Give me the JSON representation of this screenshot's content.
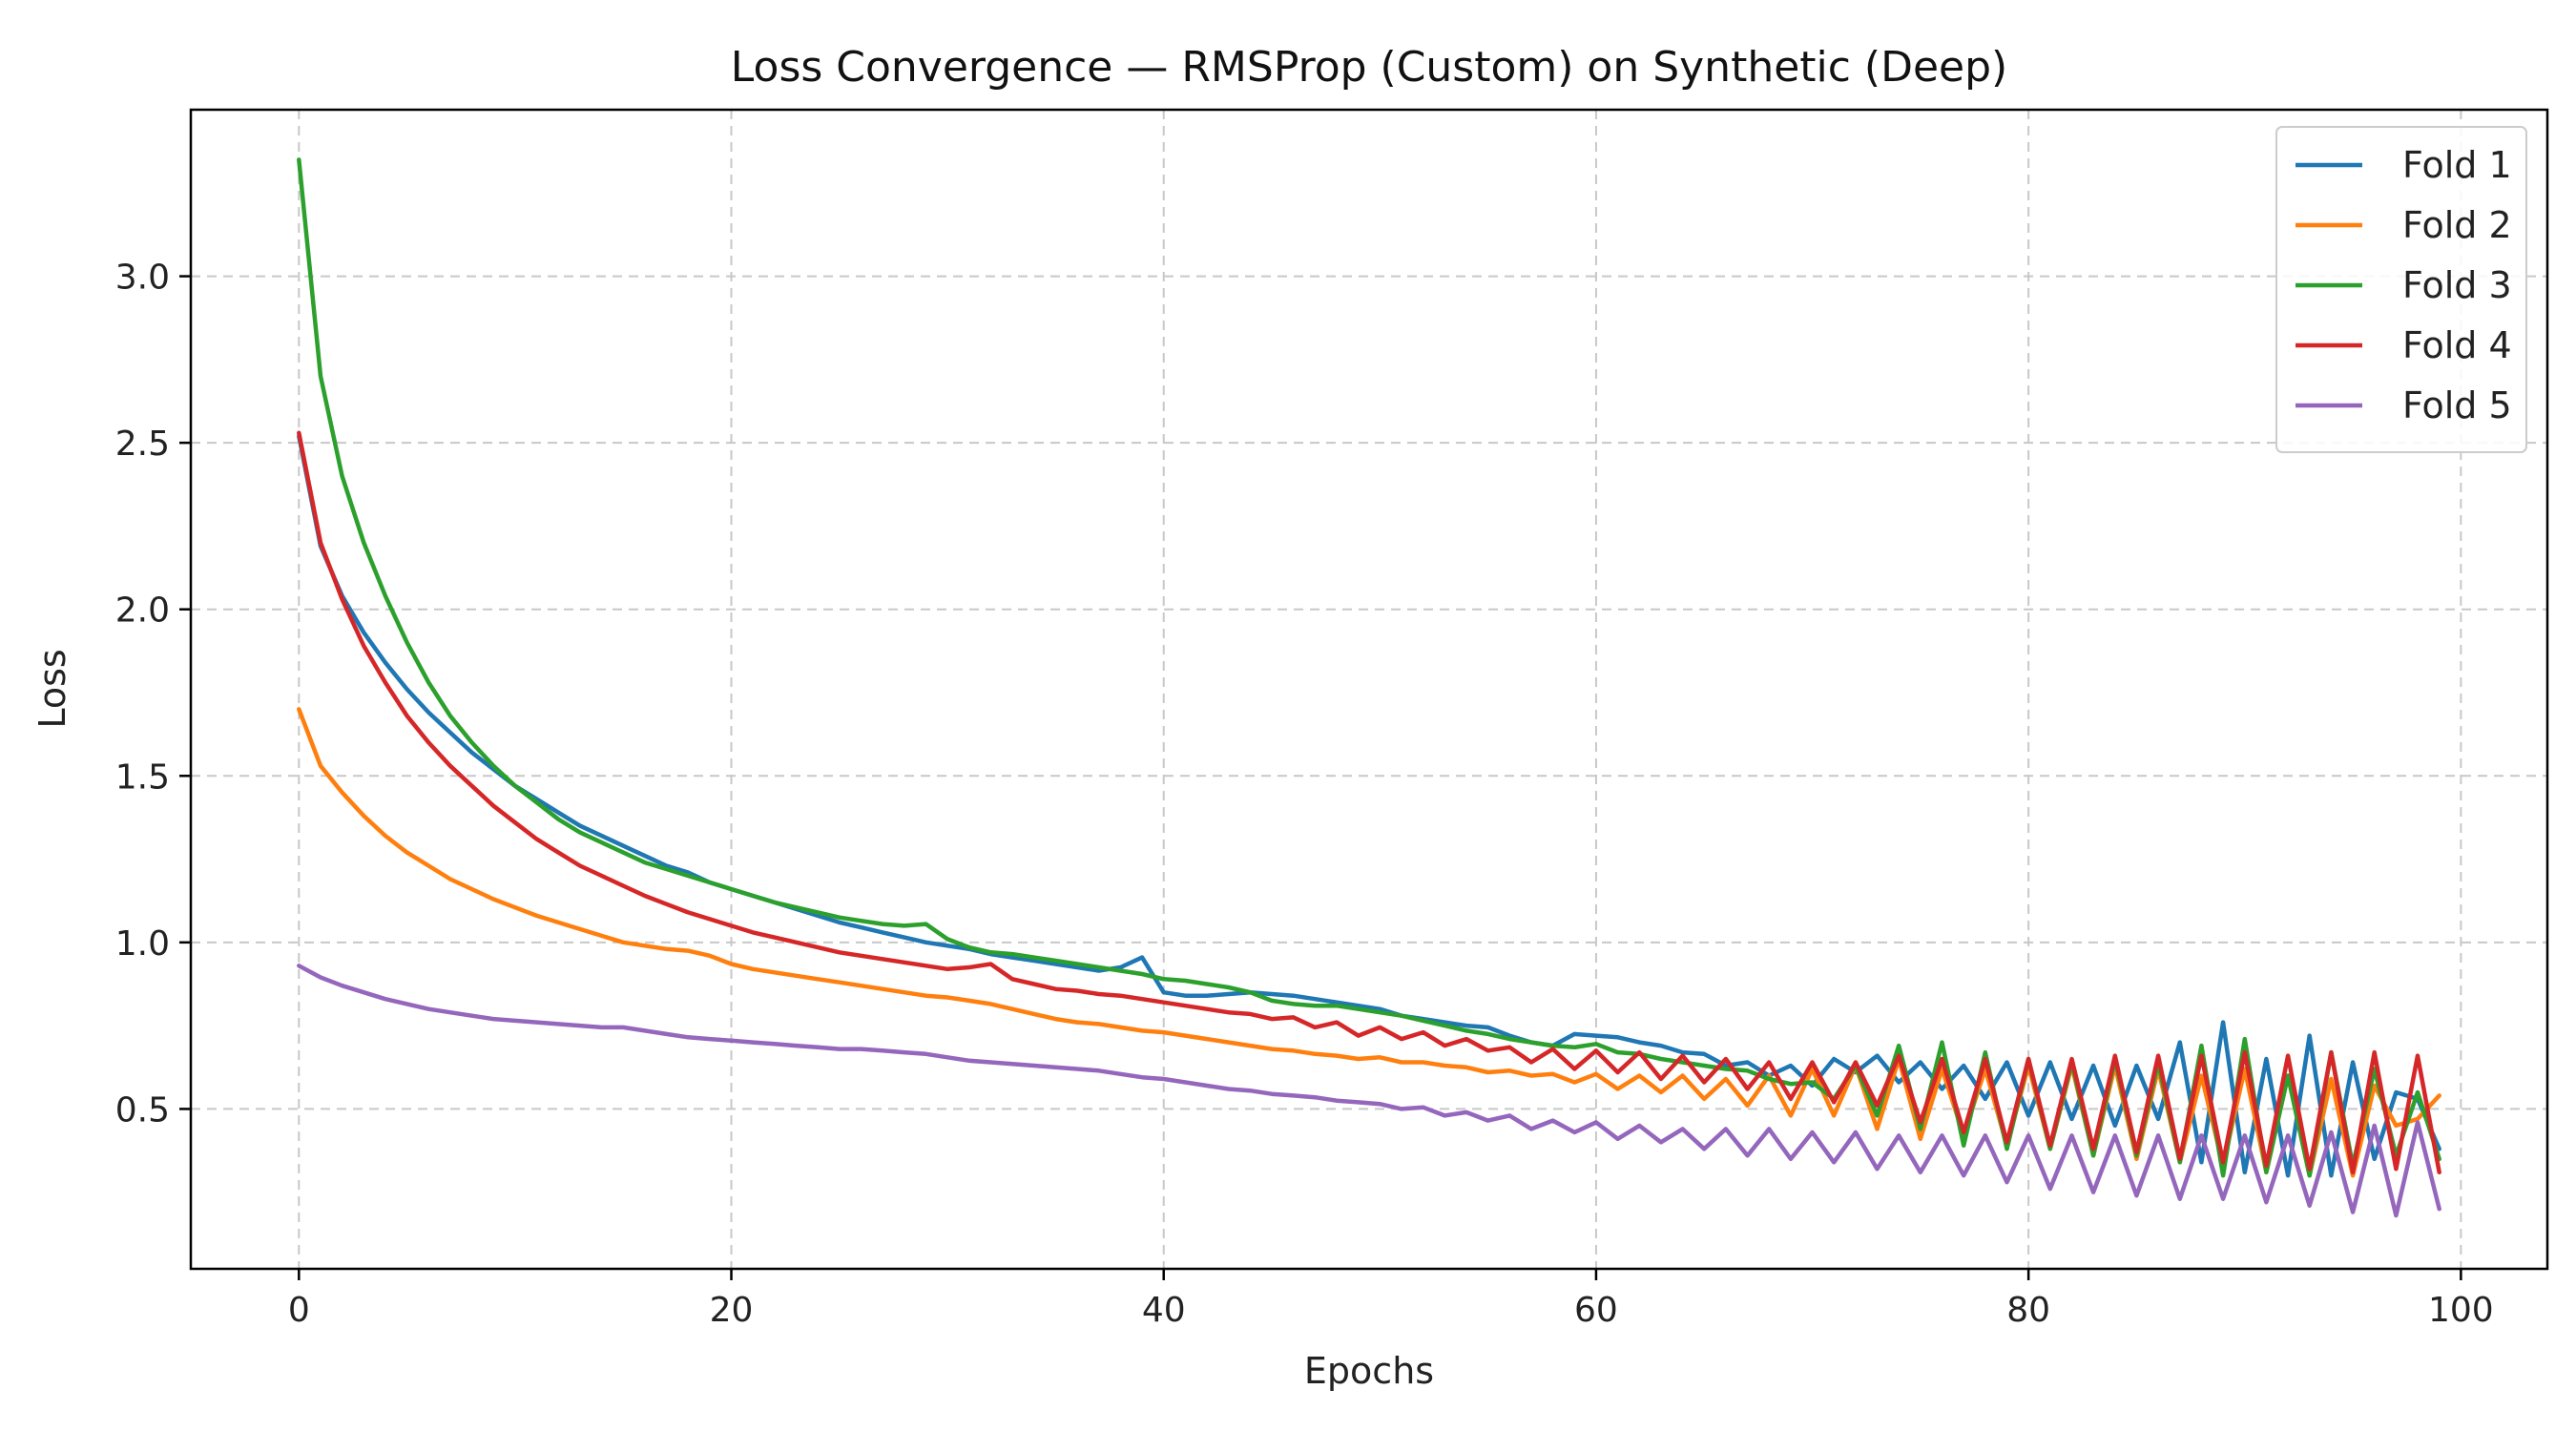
{
  "chart_data": {
    "type": "line",
    "title": "Loss Convergence — RMSProp (Custom) on Synthetic (Deep)",
    "xlabel": "Epochs",
    "ylabel": "Loss",
    "xlim": [
      -5,
      104
    ],
    "ylim": [
      0.02,
      3.5
    ],
    "xticks": [
      0,
      20,
      40,
      60,
      80,
      100
    ],
    "yticks": [
      0.5,
      1.0,
      1.5,
      2.0,
      2.5,
      3.0
    ],
    "xtick_labels": [
      "0",
      "20",
      "40",
      "60",
      "80",
      "100"
    ],
    "ytick_labels": [
      "0.5",
      "1.0",
      "1.5",
      "2.0",
      "2.5",
      "3.0"
    ],
    "grid": true,
    "legend_position": "top-right",
    "series": [
      {
        "name": "Fold 1",
        "color": "#1f77b4",
        "values": [
          2.52,
          2.19,
          2.04,
          1.93,
          1.84,
          1.76,
          1.69,
          1.63,
          1.57,
          1.52,
          1.47,
          1.43,
          1.39,
          1.35,
          1.32,
          1.29,
          1.26,
          1.23,
          1.21,
          1.18,
          1.16,
          1.14,
          1.12,
          1.1,
          1.08,
          1.06,
          1.045,
          1.03,
          1.015,
          1.0,
          0.99,
          0.98,
          0.965,
          0.955,
          0.945,
          0.935,
          0.925,
          0.915,
          0.925,
          0.955,
          0.85,
          0.84,
          0.84,
          0.845,
          0.85,
          0.845,
          0.84,
          0.83,
          0.82,
          0.81,
          0.8,
          0.78,
          0.77,
          0.76,
          0.75,
          0.745,
          0.72,
          0.7,
          0.69,
          0.725,
          0.72,
          0.715,
          0.7,
          0.69,
          0.67,
          0.665,
          0.63,
          0.64,
          0.6,
          0.63,
          0.57,
          0.65,
          0.61,
          0.66,
          0.58,
          0.64,
          0.56,
          0.63,
          0.53,
          0.64,
          0.48,
          0.64,
          0.47,
          0.63,
          0.45,
          0.63,
          0.47,
          0.7,
          0.34,
          0.76,
          0.31,
          0.65,
          0.3,
          0.72,
          0.3,
          0.64,
          0.35,
          0.55,
          0.53,
          0.38
        ]
      },
      {
        "name": "Fold 2",
        "color": "#ff7f0e",
        "values": [
          1.7,
          1.53,
          1.45,
          1.38,
          1.32,
          1.27,
          1.23,
          1.19,
          1.16,
          1.13,
          1.105,
          1.08,
          1.06,
          1.04,
          1.02,
          1.0,
          0.99,
          0.98,
          0.975,
          0.96,
          0.935,
          0.92,
          0.91,
          0.9,
          0.89,
          0.88,
          0.87,
          0.86,
          0.85,
          0.84,
          0.835,
          0.825,
          0.815,
          0.8,
          0.785,
          0.77,
          0.76,
          0.755,
          0.745,
          0.735,
          0.73,
          0.72,
          0.71,
          0.7,
          0.69,
          0.68,
          0.675,
          0.665,
          0.66,
          0.65,
          0.655,
          0.64,
          0.64,
          0.63,
          0.625,
          0.61,
          0.615,
          0.6,
          0.605,
          0.58,
          0.605,
          0.56,
          0.6,
          0.55,
          0.6,
          0.53,
          0.59,
          0.51,
          0.6,
          0.48,
          0.62,
          0.48,
          0.63,
          0.44,
          0.65,
          0.41,
          0.62,
          0.42,
          0.62,
          0.39,
          0.63,
          0.38,
          0.63,
          0.36,
          0.63,
          0.35,
          0.62,
          0.34,
          0.6,
          0.33,
          0.62,
          0.31,
          0.6,
          0.3,
          0.59,
          0.3,
          0.57,
          0.45,
          0.47,
          0.54
        ]
      },
      {
        "name": "Fold 3",
        "color": "#2ca02c",
        "values": [
          3.35,
          2.7,
          2.4,
          2.2,
          2.04,
          1.9,
          1.78,
          1.68,
          1.6,
          1.53,
          1.47,
          1.42,
          1.37,
          1.33,
          1.3,
          1.27,
          1.24,
          1.22,
          1.2,
          1.18,
          1.16,
          1.14,
          1.12,
          1.105,
          1.09,
          1.075,
          1.065,
          1.055,
          1.05,
          1.055,
          1.01,
          0.985,
          0.97,
          0.965,
          0.955,
          0.945,
          0.935,
          0.925,
          0.915,
          0.905,
          0.89,
          0.885,
          0.875,
          0.865,
          0.85,
          0.825,
          0.815,
          0.81,
          0.81,
          0.8,
          0.79,
          0.78,
          0.765,
          0.75,
          0.735,
          0.725,
          0.71,
          0.7,
          0.69,
          0.685,
          0.695,
          0.67,
          0.665,
          0.65,
          0.64,
          0.63,
          0.62,
          0.615,
          0.59,
          0.575,
          0.58,
          0.53,
          0.63,
          0.48,
          0.69,
          0.44,
          0.7,
          0.39,
          0.67,
          0.38,
          0.65,
          0.38,
          0.64,
          0.36,
          0.65,
          0.36,
          0.64,
          0.34,
          0.69,
          0.3,
          0.71,
          0.31,
          0.6,
          0.3,
          0.67,
          0.33,
          0.62,
          0.36,
          0.55,
          0.35
        ]
      },
      {
        "name": "Fold 4",
        "color": "#d62728",
        "values": [
          2.53,
          2.2,
          2.03,
          1.89,
          1.78,
          1.68,
          1.6,
          1.53,
          1.47,
          1.41,
          1.36,
          1.31,
          1.27,
          1.23,
          1.2,
          1.17,
          1.14,
          1.115,
          1.09,
          1.07,
          1.05,
          1.03,
          1.015,
          1.0,
          0.985,
          0.97,
          0.96,
          0.95,
          0.94,
          0.93,
          0.92,
          0.925,
          0.935,
          0.89,
          0.875,
          0.86,
          0.855,
          0.845,
          0.84,
          0.83,
          0.82,
          0.81,
          0.8,
          0.79,
          0.785,
          0.77,
          0.775,
          0.745,
          0.76,
          0.72,
          0.745,
          0.71,
          0.73,
          0.69,
          0.71,
          0.675,
          0.685,
          0.64,
          0.68,
          0.62,
          0.675,
          0.61,
          0.67,
          0.59,
          0.66,
          0.58,
          0.65,
          0.56,
          0.64,
          0.53,
          0.64,
          0.52,
          0.64,
          0.51,
          0.66,
          0.46,
          0.65,
          0.43,
          0.65,
          0.4,
          0.65,
          0.39,
          0.65,
          0.38,
          0.66,
          0.37,
          0.66,
          0.35,
          0.66,
          0.34,
          0.67,
          0.33,
          0.66,
          0.32,
          0.67,
          0.31,
          0.67,
          0.32,
          0.66,
          0.31
        ]
      },
      {
        "name": "Fold 5",
        "color": "#9467bd",
        "values": [
          0.93,
          0.895,
          0.87,
          0.85,
          0.83,
          0.815,
          0.8,
          0.79,
          0.78,
          0.77,
          0.765,
          0.76,
          0.755,
          0.75,
          0.745,
          0.745,
          0.735,
          0.725,
          0.715,
          0.71,
          0.705,
          0.7,
          0.695,
          0.69,
          0.685,
          0.68,
          0.68,
          0.675,
          0.67,
          0.665,
          0.655,
          0.645,
          0.64,
          0.635,
          0.63,
          0.625,
          0.62,
          0.615,
          0.605,
          0.595,
          0.59,
          0.58,
          0.57,
          0.56,
          0.555,
          0.545,
          0.54,
          0.535,
          0.525,
          0.52,
          0.515,
          0.5,
          0.505,
          0.48,
          0.49,
          0.465,
          0.48,
          0.44,
          0.465,
          0.43,
          0.46,
          0.41,
          0.45,
          0.4,
          0.44,
          0.38,
          0.44,
          0.36,
          0.44,
          0.35,
          0.43,
          0.34,
          0.43,
          0.32,
          0.42,
          0.31,
          0.42,
          0.3,
          0.42,
          0.28,
          0.42,
          0.26,
          0.42,
          0.25,
          0.42,
          0.24,
          0.42,
          0.23,
          0.42,
          0.23,
          0.42,
          0.22,
          0.42,
          0.21,
          0.43,
          0.19,
          0.45,
          0.18,
          0.46,
          0.2
        ]
      }
    ]
  }
}
